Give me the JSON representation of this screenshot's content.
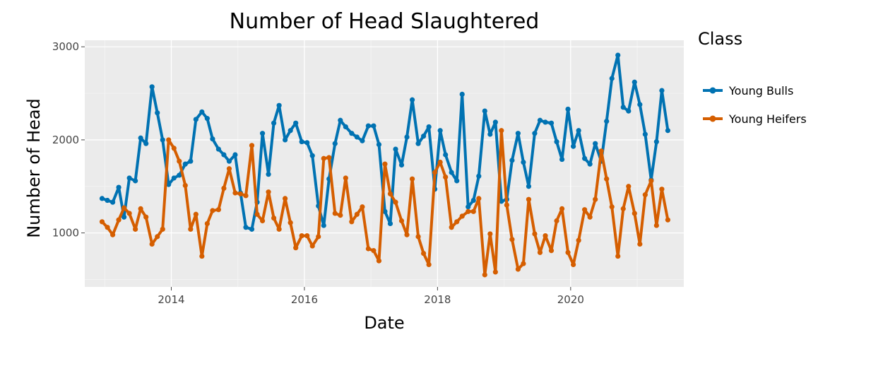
{
  "chart_data": {
    "type": "line",
    "title": "Number of Head Slaughtered",
    "xlabel": "Date",
    "ylabel": "Number of Head",
    "xlim": [
      2012.7,
      2021.7
    ],
    "ylim": [
      420,
      3070
    ],
    "x_ticks": [
      2014,
      2016,
      2018,
      2020
    ],
    "x_tick_labels": [
      "2014",
      "2016",
      "2018",
      "2020"
    ],
    "y_ticks": [
      1000,
      2000,
      3000
    ],
    "y_tick_labels": [
      "1000",
      "2000",
      "3000"
    ],
    "grid": true,
    "legend": {
      "title": "Class",
      "position": "right"
    },
    "series": [
      {
        "name": "Young Bulls",
        "color": "#0072B2",
        "x": [
          2012.96,
          2013.04,
          2013.12,
          2013.21,
          2013.29,
          2013.37,
          2013.46,
          2013.54,
          2013.62,
          2013.71,
          2013.79,
          2013.87,
          2013.96,
          2014.04,
          2014.12,
          2014.21,
          2014.29,
          2014.37,
          2014.46,
          2014.54,
          2014.62,
          2014.71,
          2014.79,
          2014.87,
          2014.96,
          2015.04,
          2015.12,
          2015.21,
          2015.29,
          2015.37,
          2015.46,
          2015.54,
          2015.62,
          2015.71,
          2015.79,
          2015.87,
          2015.96,
          2016.04,
          2016.12,
          2016.21,
          2016.29,
          2016.37,
          2016.46,
          2016.54,
          2016.62,
          2016.71,
          2016.79,
          2016.87,
          2016.96,
          2017.04,
          2017.12,
          2017.21,
          2017.29,
          2017.37,
          2017.46,
          2017.54,
          2017.62,
          2017.71,
          2017.79,
          2017.87,
          2017.96,
          2018.04,
          2018.12,
          2018.21,
          2018.29,
          2018.37,
          2018.46,
          2018.54,
          2018.62,
          2018.71,
          2018.79,
          2018.87,
          2018.96,
          2019.04,
          2019.12,
          2019.21,
          2019.29,
          2019.37,
          2019.46,
          2019.54,
          2019.62,
          2019.71,
          2019.79,
          2019.87,
          2019.96,
          2020.04,
          2020.12,
          2020.21,
          2020.29,
          2020.37,
          2020.46,
          2020.54,
          2020.62,
          2020.71,
          2020.79,
          2020.87,
          2020.96,
          2021.04,
          2021.12,
          2021.21,
          2021.29,
          2021.37,
          2021.46
        ],
        "values": [
          1370,
          1350,
          1330,
          1490,
          1170,
          1590,
          1560,
          2020,
          1960,
          2570,
          2290,
          2000,
          1520,
          1590,
          1620,
          1740,
          1770,
          2220,
          2300,
          2230,
          2010,
          1900,
          1840,
          1770,
          1840,
          1430,
          1060,
          1040,
          1330,
          2070,
          1630,
          2180,
          2370,
          2000,
          2100,
          2180,
          1980,
          1970,
          1830,
          1290,
          1080,
          1580,
          1960,
          2210,
          2140,
          2070,
          2030,
          1990,
          2150,
          2150,
          1950,
          1230,
          1100,
          1900,
          1730,
          2030,
          2430,
          1960,
          2040,
          2140,
          1470,
          2100,
          1840,
          1650,
          1560,
          2490,
          1280,
          1350,
          1610,
          2310,
          2060,
          2190,
          1340,
          1360,
          1780,
          2070,
          1760,
          1500,
          2070,
          2210,
          2190,
          2180,
          1980,
          1790,
          2330,
          1930,
          2100,
          1800,
          1740,
          1960,
          1770,
          2200,
          2660,
          2910,
          2350,
          2310,
          2620,
          2380,
          2060,
          1570,
          1980,
          2530,
          2100
        ]
      },
      {
        "name": "Young Heifers",
        "color": "#D55E00",
        "x": [
          2012.96,
          2013.04,
          2013.12,
          2013.21,
          2013.29,
          2013.37,
          2013.46,
          2013.54,
          2013.62,
          2013.71,
          2013.79,
          2013.87,
          2013.96,
          2014.04,
          2014.12,
          2014.21,
          2014.29,
          2014.37,
          2014.46,
          2014.54,
          2014.62,
          2014.71,
          2014.79,
          2014.87,
          2014.96,
          2015.04,
          2015.12,
          2015.21,
          2015.29,
          2015.37,
          2015.46,
          2015.54,
          2015.62,
          2015.71,
          2015.79,
          2015.87,
          2015.96,
          2016.04,
          2016.12,
          2016.21,
          2016.29,
          2016.37,
          2016.46,
          2016.54,
          2016.62,
          2016.71,
          2016.79,
          2016.87,
          2016.96,
          2017.04,
          2017.12,
          2017.21,
          2017.29,
          2017.37,
          2017.46,
          2017.54,
          2017.62,
          2017.71,
          2017.79,
          2017.87,
          2017.96,
          2018.04,
          2018.12,
          2018.21,
          2018.29,
          2018.37,
          2018.46,
          2018.54,
          2018.62,
          2018.71,
          2018.79,
          2018.87,
          2018.96,
          2019.04,
          2019.12,
          2019.21,
          2019.29,
          2019.37,
          2019.46,
          2019.54,
          2019.62,
          2019.71,
          2019.79,
          2019.87,
          2019.96,
          2020.04,
          2020.12,
          2020.21,
          2020.29,
          2020.37,
          2020.46,
          2020.54,
          2020.62,
          2020.71,
          2020.79,
          2020.87,
          2020.96,
          2021.04,
          2021.12,
          2021.21,
          2021.29,
          2021.37,
          2021.46
        ],
        "values": [
          1120,
          1060,
          980,
          1140,
          1270,
          1210,
          1040,
          1260,
          1170,
          880,
          960,
          1040,
          2000,
          1910,
          1770,
          1510,
          1040,
          1200,
          750,
          1100,
          1240,
          1250,
          1480,
          1690,
          1430,
          1420,
          1400,
          1940,
          1200,
          1130,
          1440,
          1160,
          1040,
          1370,
          1110,
          840,
          970,
          970,
          860,
          960,
          1800,
          1810,
          1210,
          1190,
          1590,
          1120,
          1200,
          1280,
          830,
          810,
          700,
          1740,
          1420,
          1330,
          1130,
          980,
          1580,
          960,
          780,
          660,
          1650,
          1760,
          1600,
          1060,
          1120,
          1180,
          1230,
          1230,
          1370,
          550,
          990,
          580,
          2100,
          1300,
          930,
          610,
          670,
          1360,
          990,
          790,
          970,
          810,
          1130,
          1260,
          790,
          660,
          920,
          1250,
          1170,
          1360,
          1880,
          1580,
          1280,
          750,
          1260,
          1500,
          1210,
          880,
          1410,
          1560,
          1080,
          1470,
          1140
        ]
      }
    ]
  }
}
